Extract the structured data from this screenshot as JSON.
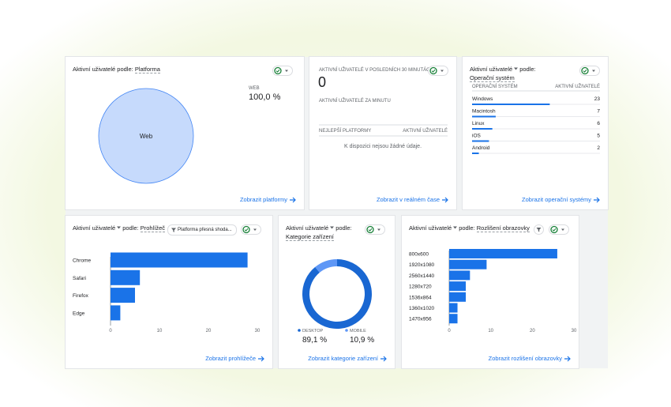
{
  "chart_data": [
    {
      "type": "pie",
      "title": "Aktivní uživatelé podle:",
      "dimension": "Platforma",
      "categories": [
        "Web"
      ],
      "values": [
        100
      ],
      "value_labels": [
        "100,0 %"
      ],
      "legend_labels": [
        "WEB"
      ],
      "color": "#c6dafc",
      "link": "Zobrazit platformy"
    },
    {
      "type": "list",
      "title": "Aktivní uživatelé",
      "title_suffix": "podle:",
      "dimension": "Operační systém",
      "columns": [
        "OPERAČNÍ SYSTÉM",
        "AKTIVNÍ UŽIVATELÉ"
      ],
      "categories": [
        "Windows",
        "Macintosh",
        "Linux",
        "iOS",
        "Android"
      ],
      "values": [
        23,
        7,
        6,
        5,
        2
      ],
      "color": "#1a73e8",
      "link": "Zobrazit operační systémy"
    },
    {
      "type": "hbar",
      "title": "Aktivní uživatelé",
      "title_suffix": "podle:",
      "dimension": "Prohlížeč",
      "filter": "Platforma přesná shoda...",
      "categories": [
        "Chrome",
        "Safari",
        "Firefox",
        "Edge"
      ],
      "values": [
        28,
        6,
        5,
        2
      ],
      "color": "#1a73e8",
      "xlim": [
        0,
        30
      ],
      "xticks": [
        0,
        10,
        20,
        30
      ],
      "link": "Zobrazit prohlížeče"
    },
    {
      "type": "donut",
      "title": "Aktivní uživatelé",
      "title_suffix": "podle:",
      "dimension": "Kategorie zařízení",
      "categories": [
        "DESKTOP",
        "MOBILE"
      ],
      "values": [
        89.1,
        10.9
      ],
      "value_labels": [
        "89,1 %",
        "10,9 %"
      ],
      "colors": [
        "#1967d2",
        "#5e97f6"
      ],
      "link": "Zobrazit kategorie zařízení"
    },
    {
      "type": "hbar",
      "title": "Aktivní uživatelé",
      "title_suffix": "podle:",
      "dimension": "Rozlišení obrazovky",
      "categories": [
        "800x600",
        "1920x1080",
        "2560x1440",
        "1280x720",
        "1536x864",
        "1360x1020",
        "1470x956"
      ],
      "values": [
        26,
        9,
        5,
        4,
        4,
        2,
        2
      ],
      "color": "#1a73e8",
      "xlim": [
        0,
        30
      ],
      "xticks": [
        0,
        10,
        20,
        30
      ],
      "link": "Zobrazit rozlišení obrazovky"
    }
  ],
  "realtime": {
    "title": "AKTIVNÍ UŽIVATELÉ V POSLEDNÍCH 30 MINUTÁCH",
    "value": 0,
    "subtitle": "AKTIVNÍ UŽIVATELÉ ZA MINUTU",
    "columns": [
      "NEJLEPŠÍ PLATFORMY",
      "AKTIVNÍ UŽIVATELÉ"
    ],
    "empty": "K dispozici nejsou žádné údaje.",
    "link": "Zobrazit v reálném čase"
  }
}
